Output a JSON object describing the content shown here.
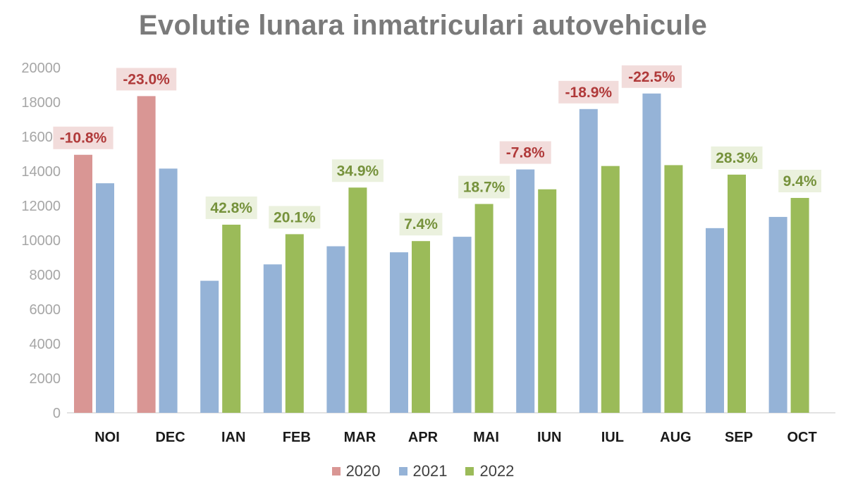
{
  "chart_data": {
    "type": "bar",
    "title": "Evolutie lunara inmatriculari autovehicule",
    "xlabel": "",
    "ylabel": "",
    "ylim": [
      0,
      20000
    ],
    "yticks": [
      0,
      2000,
      4000,
      6000,
      8000,
      10000,
      12000,
      14000,
      16000,
      18000,
      20000
    ],
    "grid": false,
    "legend_position": "bottom",
    "categories": [
      "NOI",
      "DEC",
      "IAN",
      "FEB",
      "MAR",
      "APR",
      "MAI",
      "IUN",
      "IUL",
      "AUG",
      "SEP",
      "OCT"
    ],
    "series": [
      {
        "name": "2020",
        "color": "#d99694",
        "values": [
          14950,
          18350,
          null,
          null,
          null,
          null,
          null,
          null,
          null,
          null,
          null,
          null
        ]
      },
      {
        "name": "2021",
        "color": "#95b3d7",
        "values": [
          13300,
          14150,
          7650,
          8600,
          9650,
          9300,
          10200,
          14100,
          17600,
          18500,
          10700,
          11350
        ]
      },
      {
        "name": "2022",
        "color": "#9bbb59",
        "values": [
          null,
          null,
          10900,
          10350,
          13050,
          9950,
          12100,
          12950,
          14300,
          14350,
          13800,
          12450
        ]
      }
    ],
    "annotations": [
      {
        "category": "NOI",
        "text": "-10.8%",
        "type": "negative"
      },
      {
        "category": "DEC",
        "text": "-23.0%",
        "type": "negative"
      },
      {
        "category": "IAN",
        "text": "42.8%",
        "type": "positive"
      },
      {
        "category": "FEB",
        "text": "20.1%",
        "type": "positive"
      },
      {
        "category": "MAR",
        "text": "34.9%",
        "type": "positive"
      },
      {
        "category": "APR",
        "text": "7.4%",
        "type": "positive"
      },
      {
        "category": "MAI",
        "text": "18.7%",
        "type": "positive"
      },
      {
        "category": "IUN",
        "text": "-7.8%",
        "type": "negative"
      },
      {
        "category": "IUL",
        "text": "-18.9%",
        "type": "negative"
      },
      {
        "category": "AUG",
        "text": "-22.5%",
        "type": "negative"
      },
      {
        "category": "SEP",
        "text": "28.3%",
        "type": "positive"
      },
      {
        "category": "OCT",
        "text": "9.4%",
        "type": "positive"
      }
    ],
    "annotation_colors": {
      "negative_text": "#b03a3a",
      "negative_bg": "#f2dcdb",
      "positive_text": "#76923c",
      "positive_bg": "#ebf1de"
    },
    "axis_color": "#d9d9d9",
    "tick_label_color": "#a6a6a6",
    "category_label_color": "#1a1a1a"
  }
}
